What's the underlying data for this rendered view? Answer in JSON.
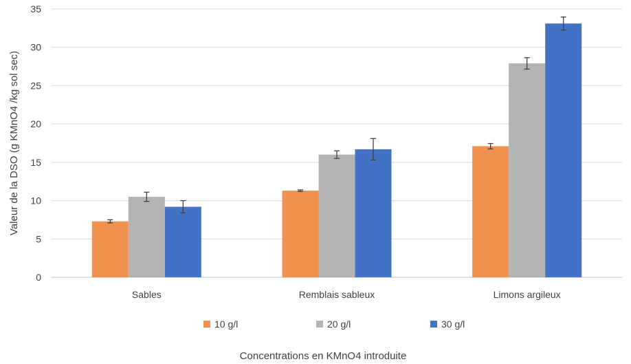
{
  "chart_data": {
    "type": "bar",
    "title": "",
    "xlabel": "Concentrations en KMnO4 introduite",
    "ylabel": "Valeur de la DSO (g KMnO4 /kg sol sec)",
    "categories": [
      "Sables",
      "Remblais sableux",
      "Limons argileux"
    ],
    "ylim": [
      0,
      35
    ],
    "yticks": [
      0,
      5,
      10,
      15,
      20,
      25,
      30,
      35
    ],
    "grid": true,
    "legend_position": "bottom",
    "series": [
      {
        "name": "10 g/l",
        "color": "#F0914F",
        "values": [
          7.3,
          11.3,
          17.1
        ],
        "errors": [
          0.2,
          0.1,
          0.35
        ]
      },
      {
        "name": "20 g/l",
        "color": "#B3B3B3",
        "values": [
          10.5,
          16.0,
          27.9
        ],
        "errors": [
          0.6,
          0.5,
          0.75
        ]
      },
      {
        "name": "30 g/l",
        "color": "#4472C4",
        "values": [
          9.2,
          16.7,
          33.1
        ],
        "errors": [
          0.8,
          1.4,
          0.85
        ]
      }
    ]
  }
}
